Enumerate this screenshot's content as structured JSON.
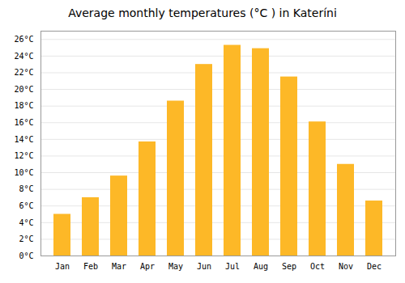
{
  "chart_data": {
    "type": "bar",
    "title": "Average monthly temperatures (°C ) in Kateríni",
    "categories": [
      "Jan",
      "Feb",
      "Mar",
      "Apr",
      "May",
      "Jun",
      "Jul",
      "Aug",
      "Sep",
      "Oct",
      "Nov",
      "Dec"
    ],
    "values": [
      5.0,
      7.0,
      9.6,
      13.7,
      18.6,
      23.0,
      25.3,
      24.9,
      21.5,
      16.1,
      11.0,
      6.6
    ],
    "color": "#FDB827",
    "ylim": [
      0,
      27
    ],
    "yticks": [
      {
        "value": 0,
        "label": "0°C"
      },
      {
        "value": 2,
        "label": "2°C"
      },
      {
        "value": 4,
        "label": "4°C"
      },
      {
        "value": 6,
        "label": "6°C"
      },
      {
        "value": 8,
        "label": "8°C"
      },
      {
        "value": 10,
        "label": "10°C"
      },
      {
        "value": 12,
        "label": "12°C"
      },
      {
        "value": 14,
        "label": "14°C"
      },
      {
        "value": 16,
        "label": "16°C"
      },
      {
        "value": 18,
        "label": "18°C"
      },
      {
        "value": 20,
        "label": "20°C"
      },
      {
        "value": 22,
        "label": "22°C"
      },
      {
        "value": 24,
        "label": "24°C"
      },
      {
        "value": 26,
        "label": "26°C"
      }
    ],
    "grid": true
  }
}
